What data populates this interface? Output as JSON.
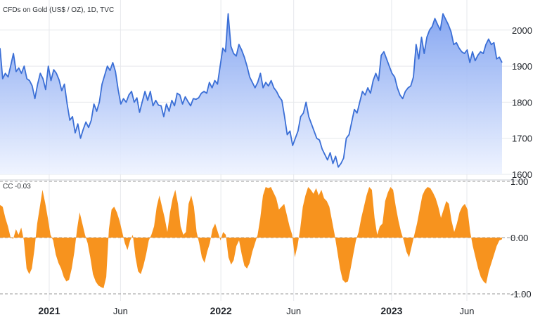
{
  "header": {
    "symbol_label": "CFDs on Gold (US$ / OZ), 1D, TVC"
  },
  "indicator": {
    "name": "CC",
    "value": "-0.03"
  },
  "colors": {
    "price_line": "#3b6fd6",
    "price_fill_top": "#7a9ef0",
    "price_fill_bottom": "#eef3ff",
    "indicator_fill": "#f7931e",
    "indicator_value_text": "#f7931e",
    "gridline": "#e6e8ec",
    "dashed_line": "#9a9a9a"
  },
  "chart_data": [
    {
      "type": "area",
      "title": "CFDs on Gold (US$ / OZ), 1D, TVC",
      "xlabel": "",
      "ylabel": "",
      "ylim": [
        1600,
        2060
      ],
      "y_ticks": [
        "2000",
        "1900",
        "1800",
        "1700",
        "1600"
      ],
      "grid": true,
      "series": [
        {
          "values": [
            1950,
            1865,
            1880,
            1870,
            1902,
            1935,
            1885,
            1895,
            1880,
            1900,
            1865,
            1860,
            1845,
            1810,
            1850,
            1880,
            1865,
            1835,
            1900,
            1860,
            1890,
            1880,
            1862,
            1832,
            1850,
            1795,
            1750,
            1760,
            1715,
            1740,
            1700,
            1725,
            1745,
            1730,
            1750,
            1795,
            1775,
            1800,
            1850,
            1875,
            1900,
            1888,
            1910,
            1885,
            1835,
            1795,
            1810,
            1800,
            1820,
            1830,
            1800,
            1812,
            1772,
            1802,
            1830,
            1805,
            1830,
            1790,
            1805,
            1792,
            1790,
            1760,
            1795,
            1775,
            1805,
            1790,
            1825,
            1820,
            1795,
            1815,
            1802,
            1790,
            1810,
            1808,
            1812,
            1825,
            1830,
            1825,
            1855,
            1840,
            1860,
            1850,
            1900,
            1950,
            1940,
            2045,
            1955,
            1935,
            1928,
            1960,
            1945,
            1925,
            1900,
            1870,
            1855,
            1840,
            1855,
            1880,
            1840,
            1855,
            1845,
            1860,
            1840,
            1830,
            1815,
            1805,
            1760,
            1710,
            1720,
            1680,
            1700,
            1720,
            1760,
            1770,
            1800,
            1760,
            1740,
            1720,
            1700,
            1695,
            1670,
            1655,
            1640,
            1660,
            1630,
            1650,
            1620,
            1630,
            1645,
            1700,
            1710,
            1745,
            1780,
            1770,
            1800,
            1830,
            1820,
            1840,
            1825,
            1860,
            1880,
            1860,
            1930,
            1940,
            1920,
            1900,
            1880,
            1870,
            1840,
            1820,
            1810,
            1830,
            1840,
            1845,
            1870,
            1960,
            1920,
            1980,
            1935,
            1980,
            2000,
            2010,
            2032,
            2015,
            2000,
            2045,
            2030,
            2015,
            1995,
            1960,
            1965,
            1950,
            1940,
            1935,
            1945,
            1910,
            1940,
            1915,
            1930,
            1940,
            1935,
            1960,
            1975,
            1960,
            1965,
            1920,
            1925,
            1910
          ]
        }
      ]
    },
    {
      "type": "area",
      "title": "CC",
      "xlabel": "",
      "ylabel": "",
      "ylim": [
        -1.0,
        1.0
      ],
      "y_ticks": [
        "1.00",
        "0.00",
        "-1.00"
      ],
      "x_tick_labels": [
        "2021",
        "Jun",
        "2022",
        "Jun",
        "2023",
        "Jun"
      ],
      "grid": true,
      "series": [
        {
          "values": [
            0.58,
            0.55,
            0.35,
            0.2,
            0.0,
            -0.02,
            0.15,
            0.05,
            0.18,
            -0.05,
            -0.55,
            -0.65,
            -0.55,
            -0.2,
            0.25,
            0.55,
            0.85,
            0.62,
            0.35,
            0.05,
            -0.05,
            -0.3,
            -0.45,
            -0.55,
            -0.7,
            -0.78,
            -0.75,
            -0.55,
            -0.25,
            0.15,
            0.45,
            0.25,
            0.05,
            -0.1,
            -0.35,
            -0.65,
            -0.78,
            -0.85,
            -0.88,
            -0.9,
            -0.7,
            0.15,
            0.5,
            0.55,
            0.45,
            0.3,
            0.1,
            -0.1,
            -0.22,
            -0.05,
            0.05,
            -0.35,
            -0.6,
            -0.65,
            -0.5,
            -0.3,
            -0.05,
            0.05,
            0.2,
            0.55,
            0.75,
            0.55,
            0.35,
            0.1,
            0.45,
            0.7,
            0.85,
            0.6,
            0.2,
            0.05,
            0.1,
            0.6,
            0.75,
            0.55,
            0.1,
            -0.1,
            -0.35,
            -0.45,
            -0.25,
            -0.1,
            0.15,
            0.25,
            0.1,
            -0.05,
            0.1,
            0.05,
            -0.35,
            -0.48,
            -0.4,
            -0.15,
            -0.05,
            -0.3,
            -0.5,
            -0.55,
            -0.45,
            -0.25,
            -0.1,
            0.05,
            0.35,
            0.75,
            0.9,
            0.88,
            0.9,
            0.8,
            0.7,
            0.5,
            0.55,
            0.6,
            0.4,
            0.2,
            0.05,
            -0.35,
            -0.15,
            0.15,
            0.55,
            0.75,
            0.9,
            0.85,
            0.78,
            0.88,
            0.75,
            0.85,
            0.7,
            0.65,
            0.55,
            0.3,
            0.05,
            -0.25,
            -0.55,
            -0.75,
            -0.8,
            -0.78,
            -0.55,
            -0.3,
            -0.05,
            0.1,
            0.35,
            0.55,
            0.75,
            0.9,
            0.85,
            0.35,
            0.05,
            0.2,
            0.25,
            0.65,
            0.8,
            0.9,
            0.85,
            0.55,
            0.3,
            0.1,
            -0.05,
            -0.25,
            -0.35,
            -0.15,
            0.05,
            0.25,
            0.5,
            0.75,
            0.85,
            0.9,
            0.88,
            0.8,
            0.7,
            0.55,
            0.35,
            0.5,
            0.65,
            0.6,
            0.3,
            0.1,
            0.25,
            0.45,
            0.55,
            0.6,
            0.5,
            0.1,
            -0.15,
            -0.35,
            -0.55,
            -0.7,
            -0.78,
            -0.82,
            -0.6,
            -0.45,
            -0.3,
            -0.15,
            -0.05,
            -0.03
          ]
        }
      ]
    }
  ]
}
